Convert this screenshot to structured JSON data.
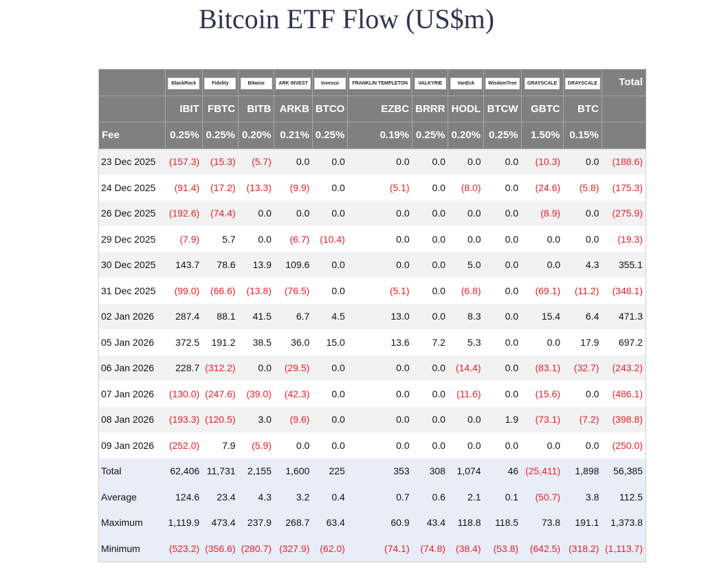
{
  "title": "Bitcoin ETF Flow (US$m)",
  "logos": [
    "BlackRock",
    "Fidelity",
    "Bitwise",
    "ARK INVEST",
    "Invesco",
    "FRANKLIN TEMPLETON",
    "VALKYRIE",
    "VanEck",
    "WisdomTree",
    "GRAYSCALE",
    "GRAYSCALE"
  ],
  "total_header": "Total",
  "tickers": [
    "IBIT",
    "FBTC",
    "BITB",
    "ARKB",
    "BTCO",
    "EZBC",
    "BRRR",
    "HODL",
    "BTCW",
    "GBTC",
    "BTC"
  ],
  "fee_label": "Fee",
  "fees": [
    "0.25%",
    "0.25%",
    "0.20%",
    "0.21%",
    "0.25%",
    "0.19%",
    "0.25%",
    "0.20%",
    "0.25%",
    "1.50%",
    "0.15%"
  ],
  "colors": {
    "header_bg": "#808080",
    "negative": "#ee1c25",
    "summary_bg": "#e9edf7"
  },
  "rows": [
    {
      "label": "23 Dec 2025",
      "values": [
        "(157.3)",
        "(15.3)",
        "(5.7)",
        "0.0",
        "0.0",
        "0.0",
        "0.0",
        "0.0",
        "0.0",
        "(10.3)",
        "0.0",
        "(188.6)"
      ]
    },
    {
      "label": "24 Dec 2025",
      "values": [
        "(91.4)",
        "(17.2)",
        "(13.3)",
        "(9.9)",
        "0.0",
        "(5.1)",
        "0.0",
        "(8.0)",
        "0.0",
        "(24.6)",
        "(5.8)",
        "(175.3)"
      ]
    },
    {
      "label": "26 Dec 2025",
      "values": [
        "(192.6)",
        "(74.4)",
        "0.0",
        "0.0",
        "0.0",
        "0.0",
        "0.0",
        "0.0",
        "0.0",
        "(8.9)",
        "0.0",
        "(275.9)"
      ]
    },
    {
      "label": "29 Dec 2025",
      "values": [
        "(7.9)",
        "5.7",
        "0.0",
        "(6.7)",
        "(10.4)",
        "0.0",
        "0.0",
        "0.0",
        "0.0",
        "0.0",
        "0.0",
        "(19.3)"
      ]
    },
    {
      "label": "30 Dec 2025",
      "values": [
        "143.7",
        "78.6",
        "13.9",
        "109.6",
        "0.0",
        "0.0",
        "0.0",
        "5.0",
        "0.0",
        "0.0",
        "4.3",
        "355.1"
      ]
    },
    {
      "label": "31 Dec 2025",
      "values": [
        "(99.0)",
        "(66.6)",
        "(13.8)",
        "(76.5)",
        "0.0",
        "(5.1)",
        "0.0",
        "(6.8)",
        "0.0",
        "(69.1)",
        "(11.2)",
        "(348.1)"
      ]
    },
    {
      "label": "02 Jan 2026",
      "values": [
        "287.4",
        "88.1",
        "41.5",
        "6.7",
        "4.5",
        "13.0",
        "0.0",
        "8.3",
        "0.0",
        "15.4",
        "6.4",
        "471.3"
      ]
    },
    {
      "label": "05 Jan 2026",
      "values": [
        "372.5",
        "191.2",
        "38.5",
        "36.0",
        "15.0",
        "13.6",
        "7.2",
        "5.3",
        "0.0",
        "0.0",
        "17.9",
        "697.2"
      ]
    },
    {
      "label": "06 Jan 2026",
      "values": [
        "228.7",
        "(312.2)",
        "0.0",
        "(29.5)",
        "0.0",
        "0.0",
        "0.0",
        "(14.4)",
        "0.0",
        "(83.1)",
        "(32.7)",
        "(243.2)"
      ]
    },
    {
      "label": "07 Jan 2026",
      "values": [
        "(130.0)",
        "(247.6)",
        "(39.0)",
        "(42.3)",
        "0.0",
        "0.0",
        "0.0",
        "(11.6)",
        "0.0",
        "(15.6)",
        "0.0",
        "(486.1)"
      ]
    },
    {
      "label": "08 Jan 2026",
      "values": [
        "(193.3)",
        "(120.5)",
        "3.0",
        "(9.6)",
        "0.0",
        "0.0",
        "0.0",
        "0.0",
        "1.9",
        "(73.1)",
        "(7.2)",
        "(398.8)"
      ]
    },
    {
      "label": "09 Jan 2026",
      "values": [
        "(252.0)",
        "7.9",
        "(5.9)",
        "0.0",
        "0.0",
        "0.0",
        "0.0",
        "0.0",
        "0.0",
        "0.0",
        "0.0",
        "(250.0)"
      ]
    }
  ],
  "summary": [
    {
      "label": "Total",
      "values": [
        "62,406",
        "11,731",
        "2,155",
        "1,600",
        "225",
        "353",
        "308",
        "1,074",
        "46",
        "(25,411)",
        "1,898",
        "56,385"
      ]
    },
    {
      "label": "Average",
      "values": [
        "124.6",
        "23.4",
        "4.3",
        "3.2",
        "0.4",
        "0.7",
        "0.6",
        "2.1",
        "0.1",
        "(50.7)",
        "3.8",
        "112.5"
      ]
    },
    {
      "label": "Maximum",
      "values": [
        "1,119.9",
        "473.4",
        "237.9",
        "268.7",
        "63.4",
        "60.9",
        "43.4",
        "118.8",
        "118.5",
        "73.8",
        "191.1",
        "1,373.8"
      ]
    },
    {
      "label": "Minimum",
      "values": [
        "(523.2)",
        "(356.6)",
        "(280.7)",
        "(327.9)",
        "(62.0)",
        "(74.1)",
        "(74.8)",
        "(38.4)",
        "(53.8)",
        "(642.5)",
        "(318.2)",
        "(1,113.7)"
      ]
    }
  ]
}
